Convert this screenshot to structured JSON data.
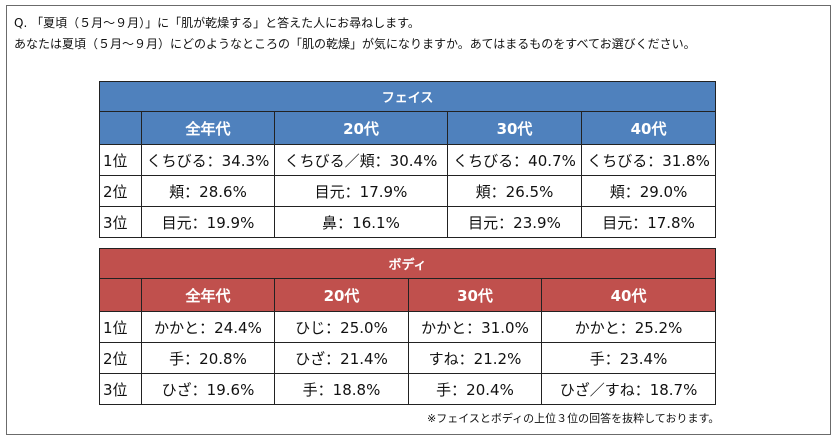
{
  "question": {
    "line1": "Q. 「夏頃（５月～９月）」に「肌が乾燥する」と答えた人にお尋ねします。",
    "line2": "あなたは夏頃（５月～９月）にどのようなところの「肌の乾燥」が気になりますか。あてはまるものをすべてお選びください。"
  },
  "face": {
    "title": "フェイス",
    "columns": [
      "全年代",
      "20代",
      "30代",
      "40代"
    ],
    "rows": [
      {
        "rank": "1位",
        "cells": [
          "くちびる：34.3%",
          "くちびる／頬：30.4%",
          "くちびる：40.7%",
          "くちびる：31.8%"
        ]
      },
      {
        "rank": "2位",
        "cells": [
          "頬：28.6%",
          "目元：17.9%",
          "頬：26.5%",
          "頬：29.0%"
        ]
      },
      {
        "rank": "3位",
        "cells": [
          "目元：19.9%",
          "鼻：16.1%",
          "目元：23.9%",
          "目元：17.8%"
        ]
      }
    ]
  },
  "body": {
    "title": "ボディ",
    "columns": [
      "全年代",
      "20代",
      "30代",
      "40代"
    ],
    "rows": [
      {
        "rank": "1位",
        "cells": [
          "かかと：24.4%",
          "ひじ：25.0%",
          "かかと：31.0%",
          "かかと：25.2%"
        ]
      },
      {
        "rank": "2位",
        "cells": [
          "手：20.8%",
          "ひざ：21.4%",
          "すね：21.2%",
          "手：23.4%"
        ]
      },
      {
        "rank": "3位",
        "cells": [
          "ひざ：19.6%",
          "手：18.8%",
          "手：20.4%",
          "ひざ／すね：18.7%"
        ]
      }
    ]
  },
  "footnote": "※フェイスとボディの上位３位の回答を抜粋しております。",
  "colors": {
    "face_header": "#4f81bd",
    "body_header": "#c0504d"
  }
}
